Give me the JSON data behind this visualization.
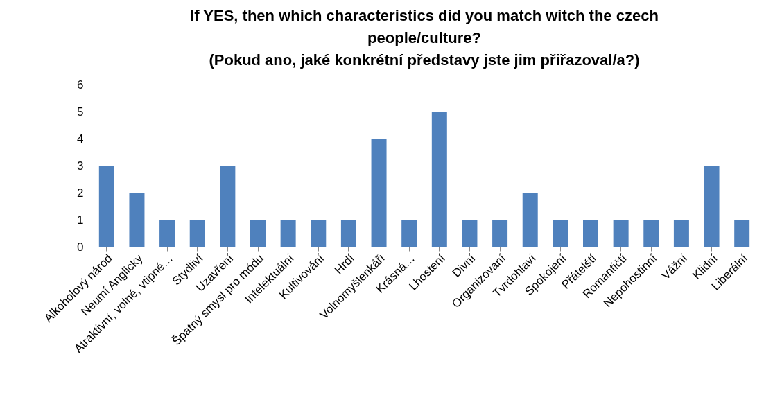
{
  "chart_data": {
    "type": "bar",
    "title": "If YES, then which characteristics did you match witch the czech people/culture?",
    "subtitle": "(Pokud ano, jaké konkrétní představy jste jim přiřazoval/a?)",
    "categories": [
      "Alkoholový národ",
      "Neumí Anglicky",
      "Atraktivní, volné, vtipné…",
      "Stydliví",
      "Uzavření",
      "Špatný smysl pro módu",
      "Intelektuální",
      "Kultivování",
      "Hrdí",
      "Volnomyšlenkáři",
      "Krásná…",
      "Lhostení",
      "Divní",
      "Organizovaní",
      "Tvrdohlaví",
      "Spokojení",
      "Přátelští",
      "Romantičtí",
      "Nepohostinní",
      "Vážní",
      "Klidní",
      "Liberální"
    ],
    "values": [
      3,
      2,
      1,
      1,
      3,
      1,
      1,
      1,
      1,
      4,
      1,
      5,
      1,
      1,
      2,
      1,
      1,
      1,
      1,
      1,
      3,
      1
    ],
    "color": "#4f81bd",
    "ylim": [
      0,
      6
    ],
    "yticks": [
      0,
      1,
      2,
      3,
      4,
      5,
      6
    ],
    "grid": "y"
  }
}
